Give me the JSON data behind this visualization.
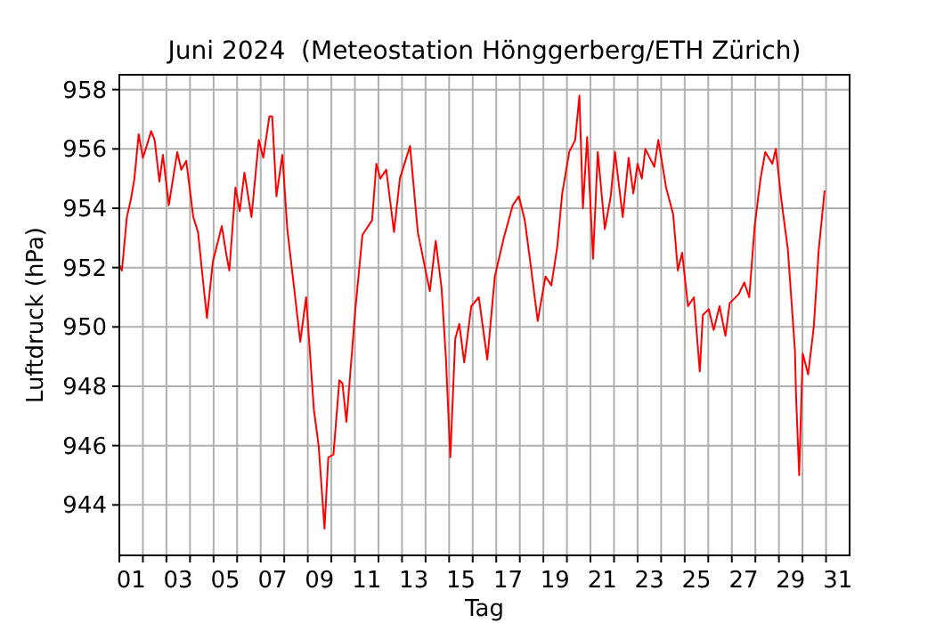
{
  "chart_data": {
    "type": "line",
    "title": "Juni 2024  (Meteostation Hönggerberg/ETH Zürich)",
    "xlabel": "Tag",
    "ylabel": "Luftdruck (hPa)",
    "xlim": [
      1,
      32
    ],
    "ylim": [
      942.3,
      958.5
    ],
    "xticks": [
      {
        "value": 1,
        "label": null
      },
      {
        "value": 2,
        "label": null
      },
      {
        "value": 3,
        "label": null
      },
      {
        "value": 4,
        "label": null
      },
      {
        "value": 5,
        "label": null
      },
      {
        "value": 6,
        "label": null
      },
      {
        "value": 7,
        "label": null
      },
      {
        "value": 8,
        "label": null
      },
      {
        "value": 9,
        "label": null
      },
      {
        "value": 10,
        "label": null
      },
      {
        "value": 11,
        "label": null
      },
      {
        "value": 12,
        "label": null
      },
      {
        "value": 13,
        "label": null
      },
      {
        "value": 14,
        "label": null
      },
      {
        "value": 15,
        "label": null
      },
      {
        "value": 16,
        "label": null
      },
      {
        "value": 17,
        "label": null
      },
      {
        "value": 18,
        "label": null
      },
      {
        "value": 19,
        "label": null
      },
      {
        "value": 20,
        "label": null
      },
      {
        "value": 21,
        "label": null
      },
      {
        "value": 22,
        "label": null
      },
      {
        "value": 23,
        "label": null
      },
      {
        "value": 24,
        "label": null
      },
      {
        "value": 25,
        "label": null
      },
      {
        "value": 26,
        "label": null
      },
      {
        "value": 27,
        "label": null
      },
      {
        "value": 28,
        "label": null
      },
      {
        "value": 29,
        "label": null
      },
      {
        "value": 30,
        "label": null
      },
      {
        "value": 31,
        "label": null
      },
      {
        "value": 1.5,
        "label": "01"
      },
      {
        "value": 3.5,
        "label": "03"
      },
      {
        "value": 5.5,
        "label": "05"
      },
      {
        "value": 7.5,
        "label": "07"
      },
      {
        "value": 9.5,
        "label": "09"
      },
      {
        "value": 11.5,
        "label": "11"
      },
      {
        "value": 13.5,
        "label": "13"
      },
      {
        "value": 15.5,
        "label": "15"
      },
      {
        "value": 17.5,
        "label": "17"
      },
      {
        "value": 19.5,
        "label": "19"
      },
      {
        "value": 21.5,
        "label": "21"
      },
      {
        "value": 23.5,
        "label": "23"
      },
      {
        "value": 25.5,
        "label": "25"
      },
      {
        "value": 27.5,
        "label": "27"
      },
      {
        "value": 29.5,
        "label": "29"
      },
      {
        "value": 31.5,
        "label": "31"
      }
    ],
    "yticks": [
      944,
      946,
      948,
      950,
      952,
      954,
      956,
      958
    ],
    "grid": true,
    "marker": "none",
    "line_style": "solid",
    "series": [
      {
        "color": "#ff0000",
        "x": [
          1.0,
          1.11,
          1.32,
          1.49,
          1.64,
          1.82,
          2.0,
          2.2,
          2.35,
          2.5,
          2.7,
          2.85,
          3.1,
          3.28,
          3.46,
          3.63,
          3.84,
          4.14,
          4.34,
          4.52,
          4.72,
          4.97,
          5.35,
          5.55,
          5.67,
          5.93,
          6.11,
          6.31,
          6.61,
          6.92,
          7.11,
          7.37,
          7.49,
          7.67,
          7.92,
          8.13,
          8.45,
          8.68,
          8.93,
          9.26,
          9.46,
          9.71,
          9.87,
          10.09,
          10.34,
          10.47,
          10.64,
          11.02,
          11.32,
          11.73,
          11.91,
          12.08,
          12.33,
          12.66,
          12.91,
          13.34,
          13.67,
          14.18,
          14.43,
          14.68,
          14.86,
          15.05,
          15.26,
          15.43,
          15.64,
          15.94,
          16.26,
          16.62,
          16.94,
          17.32,
          17.7,
          17.96,
          18.21,
          18.46,
          18.76,
          19.09,
          19.34,
          19.59,
          19.8,
          20.1,
          20.35,
          20.53,
          20.68,
          20.86,
          21.11,
          21.31,
          21.61,
          21.86,
          22.04,
          22.37,
          22.62,
          22.82,
          23.0,
          23.18,
          23.33,
          23.71,
          23.88,
          24.21,
          24.51,
          24.71,
          24.89,
          25.14,
          25.39,
          25.64,
          25.77,
          26.02,
          26.23,
          26.48,
          26.73,
          26.91,
          27.29,
          27.53,
          27.74,
          27.97,
          28.22,
          28.42,
          28.72,
          28.87,
          29.1,
          29.38,
          29.68,
          29.73,
          29.86,
          30.01,
          30.24,
          30.48,
          30.69,
          30.94
        ],
        "values": [
          952.1,
          951.9,
          953.7,
          954.3,
          955.0,
          956.5,
          955.7,
          956.2,
          956.6,
          956.3,
          954.9,
          955.8,
          954.1,
          955.0,
          955.9,
          955.3,
          955.6,
          953.7,
          953.2,
          951.8,
          950.3,
          952.2,
          953.4,
          952.4,
          951.9,
          954.7,
          953.9,
          955.2,
          953.7,
          956.3,
          955.7,
          957.1,
          957.1,
          954.4,
          955.8,
          953.3,
          951.1,
          949.5,
          951.0,
          947.2,
          946.0,
          943.2,
          945.6,
          945.7,
          948.2,
          948.1,
          946.8,
          950.6,
          953.1,
          953.6,
          955.5,
          955.0,
          955.3,
          953.2,
          955.0,
          956.1,
          953.2,
          951.2,
          952.9,
          951.3,
          949.0,
          945.6,
          949.6,
          950.1,
          948.8,
          950.7,
          951.0,
          948.9,
          951.7,
          953.0,
          954.1,
          954.4,
          953.6,
          952.1,
          950.2,
          951.7,
          951.4,
          952.7,
          954.5,
          955.9,
          956.3,
          957.8,
          954.0,
          956.4,
          952.3,
          955.9,
          953.3,
          954.4,
          955.9,
          953.7,
          955.7,
          954.5,
          955.5,
          955.0,
          956.0,
          955.4,
          956.3,
          954.7,
          953.8,
          951.9,
          952.5,
          950.7,
          951.0,
          948.5,
          950.4,
          950.6,
          949.9,
          950.7,
          949.7,
          950.8,
          951.1,
          951.5,
          951.0,
          953.4,
          955.0,
          955.9,
          955.5,
          956.0,
          954.3,
          952.6,
          949.2,
          947.6,
          945.0,
          949.1,
          948.4,
          950.0,
          952.6,
          954.6
        ]
      }
    ]
  }
}
